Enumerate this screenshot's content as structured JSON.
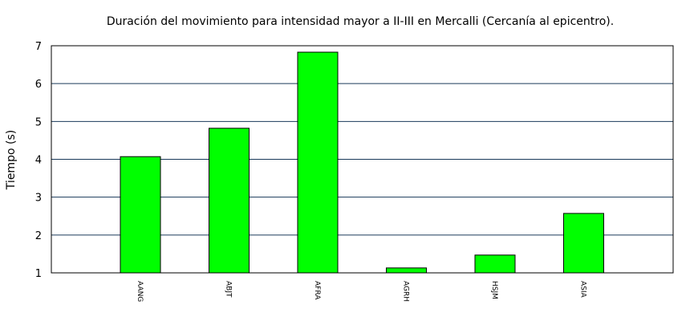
{
  "chart_data": {
    "type": "bar",
    "title": "Duración del movimiento para intensidad mayor a II-III en Mercalli (Cercanía al epicentro).",
    "xlabel": "",
    "ylabel": "Tiempo (s)",
    "categories": [
      "AANG",
      "ABJT",
      "AFRA",
      "AGRH",
      "HSJM",
      "ASIA"
    ],
    "values": [
      4.07,
      4.82,
      6.83,
      1.13,
      1.47,
      2.57
    ],
    "ylim": [
      1,
      7
    ],
    "yticks": [
      "1",
      "2",
      "3",
      "4",
      "5",
      "6",
      "7"
    ],
    "grid": true,
    "legend": "none",
    "colors": {
      "bar": "#00ff00",
      "bar_border": "#000000",
      "grid": "#1a3a5a"
    }
  }
}
